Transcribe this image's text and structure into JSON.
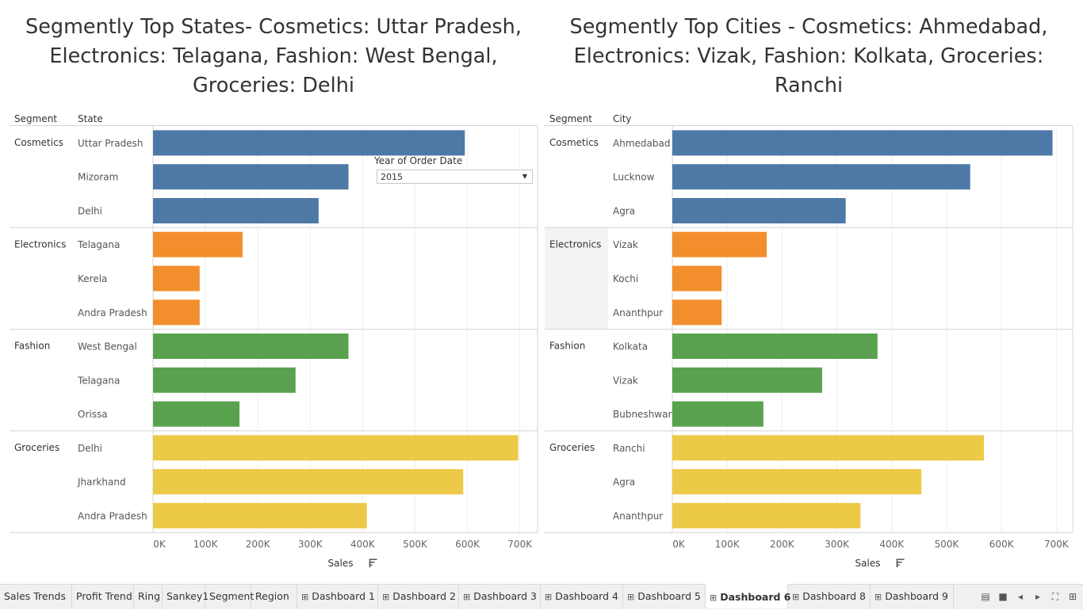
{
  "left_panel": {
    "title_lines": [
      "Segmently Top States- Cosmetics: Uttar Pradesh,",
      "Electronics: Telagana, Fashion: West Bengal,",
      "Groceries: Delhi"
    ],
    "header_segment": "Segment",
    "header_dimension": "State"
  },
  "right_panel": {
    "title_lines": [
      "Segmently Top Cities - Cosmetics: Ahmedabad,",
      "Electronics: Vizak, Fashion: Kolkata, Groceries:",
      "Ranchi"
    ],
    "header_segment": "Segment",
    "header_dimension": "City"
  },
  "filter": {
    "label": "Year of Order Date",
    "value": "2015"
  },
  "colors": {
    "Cosmetics": "#4e79a7",
    "Electronics": "#f28e2b",
    "Fashion": "#59a14f",
    "Groceries": "#edc948"
  },
  "chart_data": [
    {
      "type": "bar",
      "orientation": "horizontal",
      "xlabel": "Sales",
      "xlim": [
        0,
        720000
      ],
      "x_ticks": [
        "0K",
        "100K",
        "200K",
        "300K",
        "400K",
        "500K",
        "600K",
        "700K"
      ],
      "grid": true,
      "groups": [
        {
          "segment": "Cosmetics",
          "items": [
            {
              "label": "Uttar Pradesh",
              "value": 595000
            },
            {
              "label": "Mizoram",
              "value": 373000
            },
            {
              "label": "Delhi",
              "value": 316000
            }
          ]
        },
        {
          "segment": "Electronics",
          "items": [
            {
              "label": "Telagana",
              "value": 171000
            },
            {
              "label": "Kerela",
              "value": 89000
            },
            {
              "label": "Andra Pradesh",
              "value": 89000
            }
          ]
        },
        {
          "segment": "Fashion",
          "items": [
            {
              "label": "West Bengal",
              "value": 373000
            },
            {
              "label": "Telagana",
              "value": 272000
            },
            {
              "label": "Orissa",
              "value": 165000
            }
          ]
        },
        {
          "segment": "Groceries",
          "items": [
            {
              "label": "Delhi",
              "value": 697000
            },
            {
              "label": "Jharkhand",
              "value": 592000
            },
            {
              "label": "Andra Pradesh",
              "value": 408000
            }
          ]
        }
      ]
    },
    {
      "type": "bar",
      "orientation": "horizontal",
      "xlabel": "Sales",
      "xlim": [
        0,
        720000
      ],
      "x_ticks": [
        "0K",
        "100K",
        "200K",
        "300K",
        "400K",
        "500K",
        "600K",
        "700K"
      ],
      "grid": true,
      "groups": [
        {
          "segment": "Cosmetics",
          "items": [
            {
              "label": "Ahmedabad",
              "value": 693000
            },
            {
              "label": "Lucknow",
              "value": 543000
            },
            {
              "label": "Agra",
              "value": 316000
            }
          ]
        },
        {
          "segment": "Electronics",
          "items": [
            {
              "label": "Vizak",
              "value": 172000
            },
            {
              "label": "Kochi",
              "value": 90000
            },
            {
              "label": "Ananthpur",
              "value": 90000
            }
          ]
        },
        {
          "segment": "Fashion",
          "items": [
            {
              "label": "Kolkata",
              "value": 374000
            },
            {
              "label": "Vizak",
              "value": 273000
            },
            {
              "label": "Bubneshwar",
              "value": 166000
            }
          ]
        },
        {
          "segment": "Groceries",
          "items": [
            {
              "label": "Ranchi",
              "value": 568000
            },
            {
              "label": "Agra",
              "value": 454000
            },
            {
              "label": "Ananthpur",
              "value": 343000
            }
          ]
        }
      ]
    }
  ],
  "tabs": [
    {
      "label": "Sales Trends",
      "dashboard": false
    },
    {
      "label": "Profit Trend",
      "dashboard": false
    },
    {
      "label": "Ring",
      "dashboard": false
    },
    {
      "label": "Sankey1",
      "dashboard": false
    },
    {
      "label": "Segment",
      "dashboard": false
    },
    {
      "label": "Region",
      "dashboard": false
    },
    {
      "label": "Dashboard 1",
      "dashboard": true
    },
    {
      "label": "Dashboard 2",
      "dashboard": true
    },
    {
      "label": "Dashboard 3",
      "dashboard": true
    },
    {
      "label": "Dashboard 4",
      "dashboard": true
    },
    {
      "label": "Dashboard 5",
      "dashboard": true
    },
    {
      "label": "Dashboard 6",
      "dashboard": true,
      "active": true
    },
    {
      "label": "Dashboard 8",
      "dashboard": true
    },
    {
      "label": "Dashboard 9",
      "dashboard": true
    }
  ],
  "nav_icons": [
    "filmstrip-icon",
    "sheet-sorter-icon",
    "previous-sheet-icon",
    "next-sheet-icon",
    "fullscreen-icon",
    "grid-icon"
  ]
}
